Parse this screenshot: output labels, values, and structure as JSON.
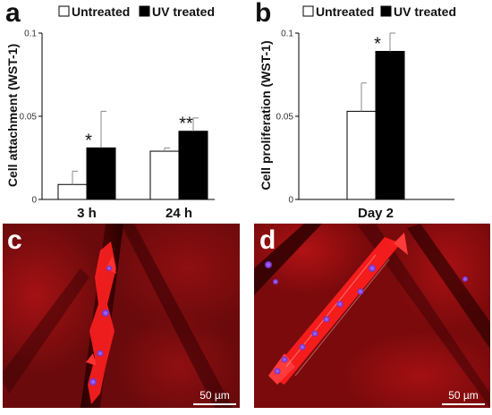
{
  "chart_data": [
    {
      "type": "bar",
      "panel": "a",
      "legend": [
        "Untreated",
        "UV treated"
      ],
      "ylabel": "Cell attachment (WST-1)",
      "ylim": [
        0,
        0.1
      ],
      "yticks": [
        "0",
        "0.05",
        "0.1"
      ],
      "categories": [
        "3 h",
        "24 h"
      ],
      "series": [
        {
          "name": "Untreated",
          "values": [
            0.009,
            0.029
          ],
          "errors": [
            0.008,
            0.002
          ],
          "color": "#ffffff"
        },
        {
          "name": "UV treated",
          "values": [
            0.031,
            0.041
          ],
          "errors": [
            0.022,
            0.008
          ],
          "color": "#000000"
        }
      ],
      "annotations": [
        "*",
        "**"
      ]
    },
    {
      "type": "bar",
      "panel": "b",
      "legend": [
        "Untreated",
        "UV treated"
      ],
      "ylabel": "Cell proliferation (WST-1)",
      "ylim": [
        0,
        0.1
      ],
      "yticks": [
        "0",
        "0.05",
        "0.1"
      ],
      "categories": [
        "Day 2"
      ],
      "series": [
        {
          "name": "Untreated",
          "values": [
            0.053
          ],
          "errors": [
            0.017
          ],
          "color": "#ffffff"
        },
        {
          "name": "UV treated",
          "values": [
            0.089
          ],
          "errors": [
            0.011
          ],
          "color": "#000000"
        }
      ],
      "annotations": [
        "*"
      ]
    }
  ],
  "images": [
    {
      "panel": "c",
      "scale_label": "50 µm"
    },
    {
      "panel": "d",
      "scale_label": "50 µm"
    }
  ]
}
